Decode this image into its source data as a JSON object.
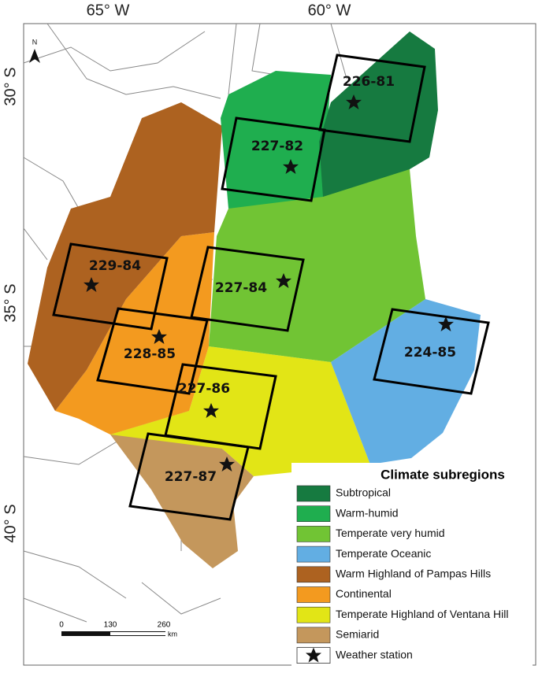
{
  "graticule": {
    "longitudes": [
      "65° W",
      "60° W"
    ],
    "latitudes": [
      "30° S",
      "35° S",
      "40° S"
    ]
  },
  "north_arrow": "N",
  "scenes": [
    {
      "label": "226-81"
    },
    {
      "label": "227-82"
    },
    {
      "label": "229-84"
    },
    {
      "label": "227-84"
    },
    {
      "label": "228-85"
    },
    {
      "label": "224-85"
    },
    {
      "label": "227-86"
    },
    {
      "label": "227-87"
    }
  ],
  "legend": {
    "title": "Climate subregions",
    "items": [
      {
        "label": "Subtropical",
        "color": "#167a40"
      },
      {
        "label": "Warm-humid",
        "color": "#1fae4f"
      },
      {
        "label": "Temperate very humid",
        "color": "#71c434"
      },
      {
        "label": "Temperate Oceanic",
        "color": "#62aee3"
      },
      {
        "label": "Warm Highland of Pampas Hills",
        "color": "#ad6220"
      },
      {
        "label": "Continental",
        "color": "#f39a1f"
      },
      {
        "label": "Temperate Highland of Ventana Hill",
        "color": "#e2e516"
      },
      {
        "label": "Semiarid",
        "color": "#c4975c"
      },
      {
        "label": "Weather station"
      }
    ]
  },
  "scale_bar": {
    "ticks": [
      "0",
      "130",
      "260"
    ],
    "unit": "km"
  }
}
